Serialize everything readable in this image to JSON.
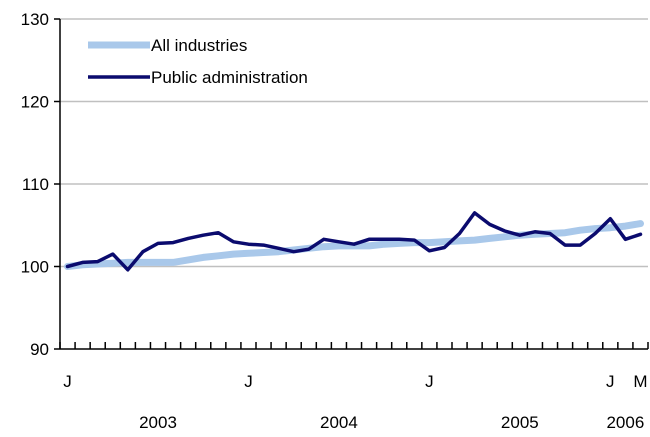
{
  "chart_data": {
    "type": "line",
    "title": "",
    "xlabel": "",
    "ylabel": "",
    "ylim": [
      90,
      130
    ],
    "yticks": [
      90,
      100,
      110,
      120,
      130
    ],
    "grid": "horizontal",
    "legend_position": "top-left",
    "x": [
      "2003-01",
      "2003-02",
      "2003-03",
      "2003-04",
      "2003-05",
      "2003-06",
      "2003-07",
      "2003-08",
      "2003-09",
      "2003-10",
      "2003-11",
      "2003-12",
      "2004-01",
      "2004-02",
      "2004-03",
      "2004-04",
      "2004-05",
      "2004-06",
      "2004-07",
      "2004-08",
      "2004-09",
      "2004-10",
      "2004-11",
      "2004-12",
      "2005-01",
      "2005-02",
      "2005-03",
      "2005-04",
      "2005-05",
      "2005-06",
      "2005-07",
      "2005-08",
      "2005-09",
      "2005-10",
      "2005-11",
      "2005-12",
      "2006-01",
      "2006-02",
      "2006-03"
    ],
    "xtick_labels": [
      {
        "x": "2003-01",
        "label": "J"
      },
      {
        "x": "2004-01",
        "label": "J"
      },
      {
        "x": "2005-01",
        "label": "J"
      },
      {
        "x": "2006-01",
        "label": "J"
      },
      {
        "x": "2006-03",
        "label": "M"
      }
    ],
    "year_labels": [
      {
        "x": "2003-07",
        "label": "2003"
      },
      {
        "x": "2004-07",
        "label": "2004"
      },
      {
        "x": "2005-07",
        "label": "2005"
      },
      {
        "x": "2006-02",
        "label": "2006"
      }
    ],
    "series": [
      {
        "name": "All industries",
        "color": "#a9c8ea",
        "values": [
          100.0,
          100.2,
          100.3,
          100.4,
          100.5,
          100.5,
          100.5,
          100.5,
          100.8,
          101.1,
          101.3,
          101.5,
          101.6,
          101.7,
          101.8,
          102.0,
          102.2,
          102.4,
          102.5,
          102.5,
          102.5,
          102.7,
          102.8,
          102.9,
          102.9,
          103.0,
          103.1,
          103.2,
          103.4,
          103.6,
          103.8,
          103.9,
          104.0,
          104.1,
          104.4,
          104.6,
          104.7,
          104.9,
          105.2
        ]
      },
      {
        "name": "Public administration",
        "color": "#0b0b6e",
        "values": [
          100.0,
          100.5,
          100.6,
          101.5,
          99.6,
          101.8,
          102.8,
          102.9,
          103.4,
          103.8,
          104.1,
          103.0,
          102.7,
          102.6,
          102.2,
          101.8,
          102.1,
          103.3,
          103.0,
          102.7,
          103.3,
          103.3,
          103.3,
          103.2,
          101.9,
          102.3,
          104.0,
          106.5,
          105.1,
          104.3,
          103.8,
          104.2,
          104.0,
          102.6,
          102.6,
          104.0,
          105.8,
          103.3,
          103.9
        ]
      }
    ]
  }
}
